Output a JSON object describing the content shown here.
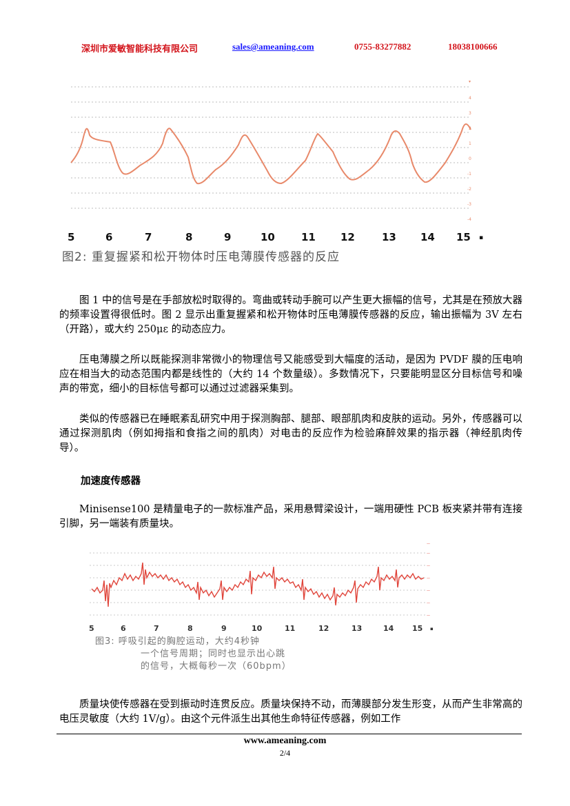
{
  "header": {
    "company": "深圳市爱敏智能科技有限公司",
    "email": "sales@ameaning.com",
    "phone": "0755-83277882",
    "mobile": "18038100666"
  },
  "figure2": {
    "caption": "图2: 重复握紧和松开物体时压电薄膜传感器的反应",
    "x_ticks": [
      "5",
      "6",
      "7",
      "8",
      "9",
      "10",
      "11",
      "12",
      "13",
      "14",
      "15"
    ],
    "x_tick_suffix": "▪",
    "line_color": "#e8896a"
  },
  "paragraphs": [
    "图 1 中的信号是在手部放松时取得的。弯曲或转动手腕可以产生更大振幅的信号，尤其是在预放大器的频率设置得很低时。图 2 显示出重复握紧和松开物体时压电薄膜传感器的反应，输出振幅为 3V 左右（开路），或大约 250με 的动态应力。",
    "压电薄膜之所以既能探测非常微小的物理信号又能感受到大幅度的活动，是因为 PVDF 膜的压电响应在相当大的动态范围内都是线性的（大约 14 个数量级）。多数情况下，只要能明显区分目标信号和噪声的带宽，细小的目标信号都可以通过过滤器采集到。",
    "类似的传感器已在睡眠紊乱研究中用于探测胸部、腿部、眼部肌肉和皮肤的运动。另外，传感器可以通过探测肌肉（例如拇指和食指之间的肌肉）对电击的反应作为检验麻醉效果的指示器（神经肌肉传导）。"
  ],
  "section_title": "加速度传感器",
  "paragraph4": "Minisense100 是精量电子的一款标准产品，采用悬臂梁设计，一端用硬性 PCB 板夹紧并带有连接引脚，另一端装有质量块。",
  "figure3": {
    "caption_lines": [
      "图3: 呼吸引起的胸腔运动，大约4秒钟",
      "一个信号周期；同时也显示出心跳",
      "的信号，大概每秒一次（60bpm）"
    ],
    "x_ticks": [
      "5",
      "6",
      "7",
      "8",
      "9",
      "10",
      "11",
      "12",
      "13",
      "14",
      "15"
    ],
    "x_tick_suffix": "▪",
    "line_color": "#e0443a"
  },
  "paragraph5": "质量块使传感器在受到振动时连贯反应。质量块保持不动，而薄膜部分发生形变，从而产生非常高的电压灵敏度（大约 1V/g）。由这个元件派生出其他生命特征传感器，例如工作",
  "footer": {
    "site": "www.ameaning.com",
    "page": "2/4"
  }
}
